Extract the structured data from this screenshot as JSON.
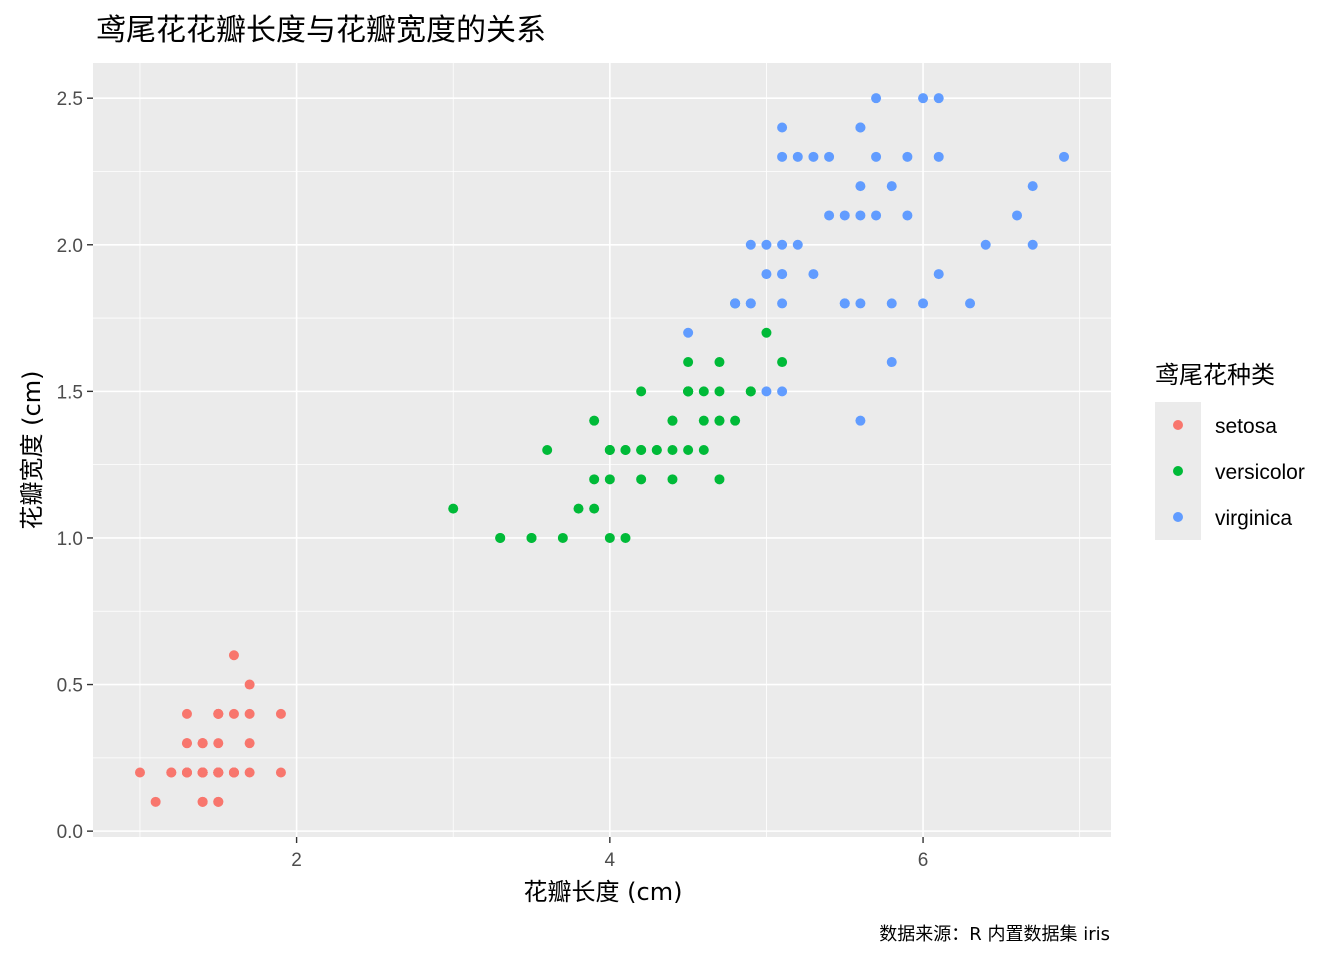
{
  "chart_data": {
    "type": "scatter",
    "title": "鸢尾花花瓣长度与花瓣宽度的关系",
    "xlabel": "花瓣长度 (cm)",
    "ylabel": "花瓣宽度 (cm)",
    "caption": "数据来源：R 内置数据集 iris",
    "xlim": [
      0.7,
      7.2
    ],
    "ylim": [
      -0.02,
      2.62
    ],
    "x_ticks": [
      2,
      4,
      6
    ],
    "x_tick_labels": [
      "2",
      "4",
      "6"
    ],
    "y_ticks": [
      0.0,
      0.5,
      1.0,
      1.5,
      2.0,
      2.5
    ],
    "y_tick_labels": [
      "0.0",
      "0.5",
      "1.0",
      "1.5",
      "2.0",
      "2.5"
    ],
    "grid": true,
    "legend_title": "鸢尾花种类",
    "legend_position": "right",
    "series": [
      {
        "name": "setosa",
        "color": "#F8766D",
        "points": [
          [
            1.4,
            0.2
          ],
          [
            1.4,
            0.2
          ],
          [
            1.3,
            0.2
          ],
          [
            1.5,
            0.2
          ],
          [
            1.4,
            0.2
          ],
          [
            1.7,
            0.4
          ],
          [
            1.4,
            0.3
          ],
          [
            1.5,
            0.2
          ],
          [
            1.4,
            0.2
          ],
          [
            1.5,
            0.1
          ],
          [
            1.5,
            0.2
          ],
          [
            1.6,
            0.2
          ],
          [
            1.4,
            0.1
          ],
          [
            1.1,
            0.1
          ],
          [
            1.2,
            0.2
          ],
          [
            1.5,
            0.4
          ],
          [
            1.3,
            0.4
          ],
          [
            1.4,
            0.3
          ],
          [
            1.7,
            0.3
          ],
          [
            1.5,
            0.3
          ],
          [
            1.7,
            0.2
          ],
          [
            1.5,
            0.4
          ],
          [
            1.0,
            0.2
          ],
          [
            1.7,
            0.5
          ],
          [
            1.9,
            0.2
          ],
          [
            1.6,
            0.2
          ],
          [
            1.6,
            0.4
          ],
          [
            1.5,
            0.2
          ],
          [
            1.4,
            0.2
          ],
          [
            1.6,
            0.2
          ],
          [
            1.6,
            0.2
          ],
          [
            1.5,
            0.4
          ],
          [
            1.5,
            0.1
          ],
          [
            1.4,
            0.2
          ],
          [
            1.5,
            0.2
          ],
          [
            1.2,
            0.2
          ],
          [
            1.3,
            0.2
          ],
          [
            1.4,
            0.1
          ],
          [
            1.3,
            0.2
          ],
          [
            1.5,
            0.2
          ],
          [
            1.3,
            0.3
          ],
          [
            1.3,
            0.3
          ],
          [
            1.3,
            0.2
          ],
          [
            1.6,
            0.6
          ],
          [
            1.9,
            0.4
          ],
          [
            1.4,
            0.3
          ],
          [
            1.6,
            0.2
          ],
          [
            1.4,
            0.2
          ],
          [
            1.5,
            0.2
          ],
          [
            1.4,
            0.2
          ]
        ]
      },
      {
        "name": "versicolor",
        "color": "#00BA38",
        "points": [
          [
            4.7,
            1.4
          ],
          [
            4.5,
            1.5
          ],
          [
            4.9,
            1.5
          ],
          [
            4.0,
            1.3
          ],
          [
            4.6,
            1.5
          ],
          [
            4.5,
            1.3
          ],
          [
            4.7,
            1.6
          ],
          [
            3.3,
            1.0
          ],
          [
            4.6,
            1.3
          ],
          [
            3.9,
            1.4
          ],
          [
            3.5,
            1.0
          ],
          [
            4.2,
            1.5
          ],
          [
            4.0,
            1.0
          ],
          [
            4.7,
            1.4
          ],
          [
            3.6,
            1.3
          ],
          [
            4.4,
            1.4
          ],
          [
            4.5,
            1.5
          ],
          [
            4.1,
            1.0
          ],
          [
            4.5,
            1.5
          ],
          [
            3.9,
            1.1
          ],
          [
            4.8,
            1.8
          ],
          [
            4.0,
            1.3
          ],
          [
            4.9,
            1.5
          ],
          [
            4.7,
            1.2
          ],
          [
            4.3,
            1.3
          ],
          [
            4.4,
            1.4
          ],
          [
            4.8,
            1.4
          ],
          [
            5.0,
            1.7
          ],
          [
            4.5,
            1.5
          ],
          [
            3.5,
            1.0
          ],
          [
            3.8,
            1.1
          ],
          [
            3.7,
            1.0
          ],
          [
            3.9,
            1.2
          ],
          [
            5.1,
            1.6
          ],
          [
            4.5,
            1.5
          ],
          [
            4.5,
            1.6
          ],
          [
            4.7,
            1.5
          ],
          [
            4.4,
            1.3
          ],
          [
            4.1,
            1.3
          ],
          [
            4.0,
            1.3
          ],
          [
            4.4,
            1.2
          ],
          [
            4.6,
            1.4
          ],
          [
            4.0,
            1.2
          ],
          [
            3.3,
            1.0
          ],
          [
            4.2,
            1.3
          ],
          [
            4.2,
            1.2
          ],
          [
            4.2,
            1.3
          ],
          [
            4.3,
            1.3
          ],
          [
            3.0,
            1.1
          ],
          [
            4.1,
            1.3
          ]
        ]
      },
      {
        "name": "virginica",
        "color": "#619CFF",
        "points": [
          [
            6.0,
            2.5
          ],
          [
            5.1,
            1.9
          ],
          [
            5.9,
            2.1
          ],
          [
            5.6,
            1.8
          ],
          [
            5.8,
            2.2
          ],
          [
            6.6,
            2.1
          ],
          [
            4.5,
            1.7
          ],
          [
            6.3,
            1.8
          ],
          [
            5.8,
            1.8
          ],
          [
            6.1,
            2.5
          ],
          [
            5.1,
            2.0
          ],
          [
            5.3,
            1.9
          ],
          [
            5.5,
            2.1
          ],
          [
            5.0,
            2.0
          ],
          [
            5.1,
            2.4
          ],
          [
            5.3,
            2.3
          ],
          [
            5.5,
            1.8
          ],
          [
            6.7,
            2.2
          ],
          [
            6.9,
            2.3
          ],
          [
            5.0,
            1.5
          ],
          [
            5.7,
            2.3
          ],
          [
            4.9,
            2.0
          ],
          [
            6.7,
            2.0
          ],
          [
            4.9,
            1.8
          ],
          [
            5.7,
            2.1
          ],
          [
            6.0,
            1.8
          ],
          [
            4.8,
            1.8
          ],
          [
            4.9,
            1.8
          ],
          [
            5.6,
            2.1
          ],
          [
            5.8,
            1.6
          ],
          [
            6.1,
            1.9
          ],
          [
            6.4,
            2.0
          ],
          [
            5.6,
            2.2
          ],
          [
            5.1,
            1.5
          ],
          [
            5.6,
            1.4
          ],
          [
            6.1,
            2.3
          ],
          [
            5.6,
            2.4
          ],
          [
            5.5,
            1.8
          ],
          [
            4.8,
            1.8
          ],
          [
            5.4,
            2.1
          ],
          [
            5.6,
            2.4
          ],
          [
            5.1,
            2.3
          ],
          [
            5.1,
            1.9
          ],
          [
            5.9,
            2.3
          ],
          [
            5.7,
            2.5
          ],
          [
            5.2,
            2.3
          ],
          [
            5.0,
            1.9
          ],
          [
            5.2,
            2.0
          ],
          [
            5.4,
            2.3
          ],
          [
            5.1,
            1.8
          ]
        ]
      }
    ]
  }
}
